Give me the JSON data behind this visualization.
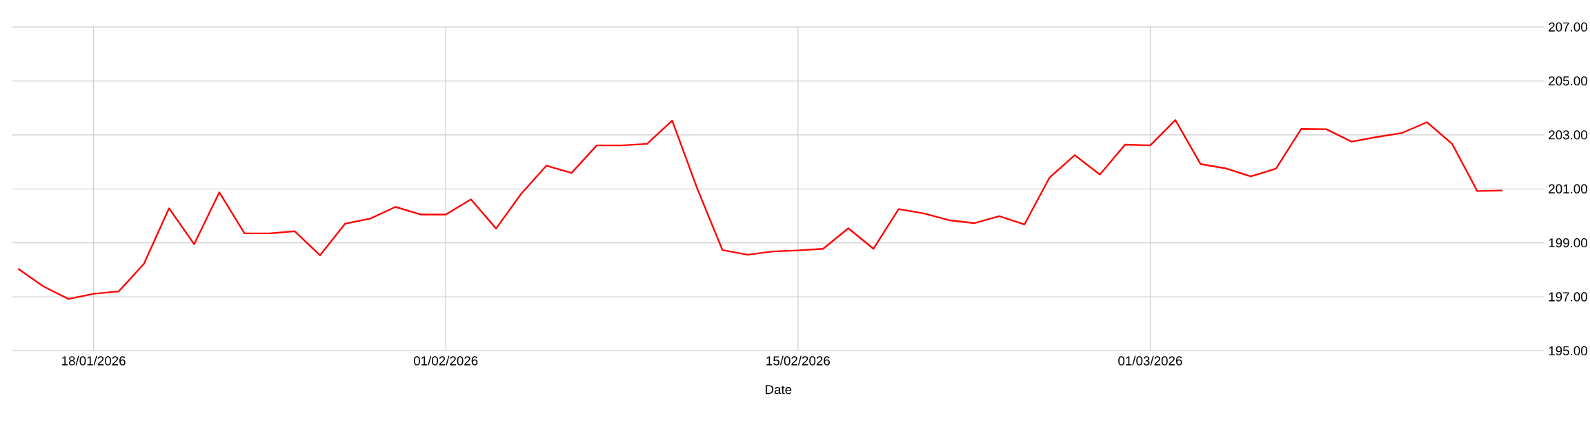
{
  "chart_data": {
    "type": "line",
    "xlabel": "Date",
    "x": [
      "2026-01-15",
      "2026-01-16",
      "2026-01-17",
      "2026-01-18",
      "2026-01-19",
      "2026-01-20",
      "2026-01-21",
      "2026-01-22",
      "2026-01-23",
      "2026-01-24",
      "2026-01-25",
      "2026-01-26",
      "2026-01-27",
      "2026-01-28",
      "2026-01-29",
      "2026-01-30",
      "2026-01-31",
      "2026-02-01",
      "2026-02-02",
      "2026-02-03",
      "2026-02-04",
      "2026-02-05",
      "2026-02-06",
      "2026-02-07",
      "2026-02-08",
      "2026-02-09",
      "2026-02-10",
      "2026-02-11",
      "2026-02-12",
      "2026-02-13",
      "2026-02-14",
      "2026-02-15",
      "2026-02-16",
      "2026-02-17",
      "2026-02-18",
      "2026-02-19",
      "2026-02-20",
      "2026-02-21",
      "2026-02-22",
      "2026-02-23",
      "2026-02-24",
      "2026-02-25",
      "2026-02-26",
      "2026-02-27",
      "2026-02-28",
      "2026-03-01",
      "2026-03-02",
      "2026-03-03",
      "2026-03-04",
      "2026-03-05",
      "2026-03-06",
      "2026-03-07",
      "2026-03-08",
      "2026-03-09",
      "2026-03-10",
      "2026-03-11",
      "2026-03-12",
      "2026-03-13",
      "2026-03-14",
      "2026-03-15"
    ],
    "series": [
      {
        "color": "#ff0000",
        "values": [
          198.04,
          197.39,
          196.92,
          197.11,
          197.2,
          198.22,
          200.28,
          198.95,
          200.87,
          199.35,
          199.35,
          199.43,
          198.54,
          199.71,
          199.9,
          200.33,
          200.05,
          200.05,
          200.61,
          199.53,
          200.82,
          201.86,
          201.59,
          202.61,
          202.61,
          202.67,
          203.53,
          201.0,
          198.73,
          198.56,
          198.68,
          198.72,
          198.78,
          199.54,
          198.78,
          200.25,
          200.09,
          199.84,
          199.73,
          199.99,
          199.68,
          201.42,
          202.25,
          201.53,
          202.64,
          202.61,
          203.55,
          201.92,
          201.76,
          201.46,
          201.75,
          203.22,
          203.21,
          202.75,
          202.92,
          203.07,
          203.47,
          202.67,
          200.92,
          200.94
        ]
      }
    ],
    "xlim": [
      "2026-01-14T18:30",
      "2026-03-16T16:00"
    ],
    "xticks": [
      {
        "value": "2026-01-18",
        "label": "18/01/2026"
      },
      {
        "value": "2026-02-01",
        "label": "01/02/2026"
      },
      {
        "value": "2026-02-15",
        "label": "15/02/2026"
      },
      {
        "value": "2026-03-01",
        "label": "01/03/2026"
      }
    ],
    "ylim": [
      195,
      207
    ],
    "yticks": [
      {
        "value": 195,
        "label": "195.00"
      },
      {
        "value": 197,
        "label": "197.00"
      },
      {
        "value": 199,
        "label": "199.00"
      },
      {
        "value": 201,
        "label": "201.00"
      },
      {
        "value": 203,
        "label": "203.00"
      },
      {
        "value": 205,
        "label": "205.00"
      },
      {
        "value": 207,
        "label": "207.00"
      }
    ],
    "grid": true,
    "marker": "none",
    "line_style": "solid"
  }
}
